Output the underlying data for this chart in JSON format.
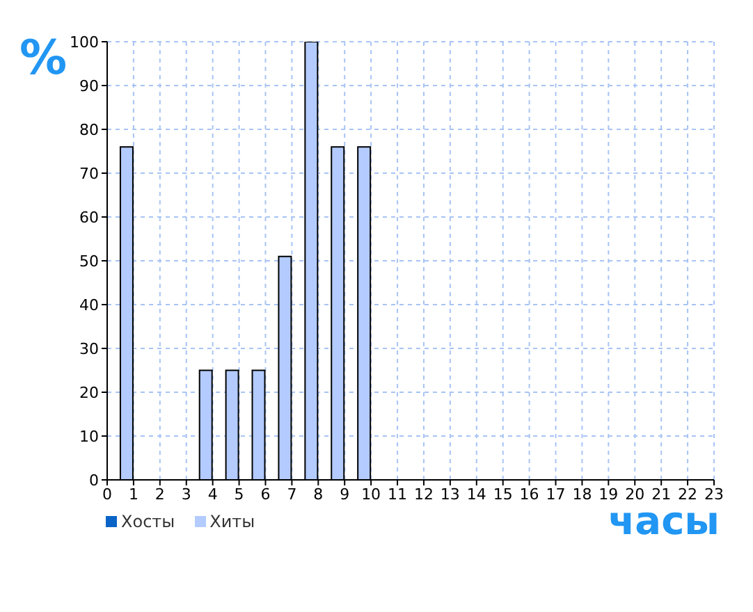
{
  "chart_data": {
    "type": "bar",
    "ylabel": "%",
    "xlabel": "часы",
    "x": [
      0,
      1,
      2,
      3,
      4,
      5,
      6,
      7,
      8,
      9,
      10,
      11,
      12,
      13,
      14,
      15,
      16,
      17,
      18,
      19,
      20,
      21,
      22,
      23
    ],
    "series": [
      {
        "name": "Хосты",
        "color": "#0a64c8",
        "values": [
          0,
          0,
          0,
          0,
          0,
          0,
          0,
          0,
          0,
          0,
          0,
          0,
          0,
          0,
          0,
          0,
          0,
          0,
          0,
          0,
          0,
          0,
          0,
          0
        ]
      },
      {
        "name": "Хиты",
        "color": "#b3cbff",
        "values": [
          0,
          76,
          0,
          0,
          25,
          25,
          25,
          51,
          100,
          76,
          76,
          0,
          0,
          0,
          0,
          0,
          0,
          0,
          0,
          0,
          0,
          0,
          0,
          0
        ]
      }
    ],
    "xlim": [
      0,
      23
    ],
    "xticks": [
      0,
      1,
      2,
      3,
      4,
      5,
      6,
      7,
      8,
      9,
      10,
      11,
      12,
      13,
      14,
      15,
      16,
      17,
      18,
      19,
      20,
      21,
      22,
      23
    ],
    "ylim": [
      0,
      100
    ],
    "yticks": [
      0,
      10,
      20,
      30,
      40,
      50,
      60,
      70,
      80,
      90,
      100
    ],
    "grid": true,
    "legend": "bottom left"
  }
}
